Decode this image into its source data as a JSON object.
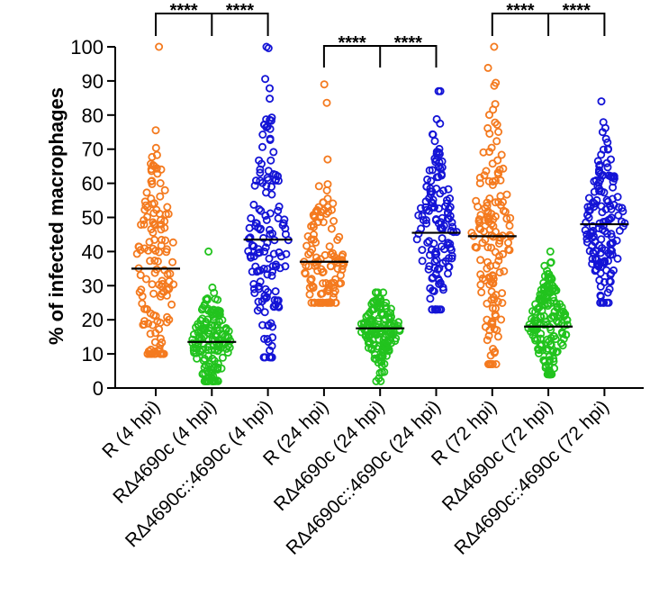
{
  "chart_data": {
    "type": "scatter",
    "title": "",
    "ylabel": "% of infected macrophages",
    "xlabel": "",
    "ylim": [
      0,
      100
    ],
    "yticks": [
      0,
      10,
      20,
      30,
      40,
      50,
      60,
      70,
      80,
      90,
      100
    ],
    "grid": false,
    "categories": [
      "R (4 hpi)",
      "RΔ4690c (4 hpi)",
      "RΔ4690c::4690c (4 hpi)",
      "R (24 hpi)",
      "RΔ4690c (24 hpi)",
      "RΔ4690c::4690c (24 hpi)",
      "R (72 hpi)",
      "RΔ4690c (72 hpi)",
      "RΔ4690c::4690c (72 hpi)"
    ],
    "series": [
      {
        "name": "R (4 hpi)",
        "color": "#f47a1f",
        "mean": 35,
        "min": 10,
        "max": 100,
        "n": 140
      },
      {
        "name": "RΔ4690c (4 hpi)",
        "color": "#22c31e",
        "mean": 13.5,
        "min": 2,
        "max": 40,
        "n": 150
      },
      {
        "name": "RΔ4690c::4690c (4 hpi)",
        "color": "#1414d6",
        "mean": 43.5,
        "min": 9,
        "max": 100,
        "n": 150
      },
      {
        "name": "R (24 hpi)",
        "color": "#f47a1f",
        "mean": 37,
        "min": 25,
        "max": 89,
        "n": 120
      },
      {
        "name": "RΔ4690c (24 hpi)",
        "color": "#22c31e",
        "mean": 17.5,
        "min": 2,
        "max": 28,
        "n": 150
      },
      {
        "name": "RΔ4690c::4690c (24 hpi)",
        "color": "#1414d6",
        "mean": 45.5,
        "min": 23,
        "max": 87,
        "n": 140
      },
      {
        "name": "R (72 hpi)",
        "color": "#f47a1f",
        "mean": 44.5,
        "min": 7,
        "max": 100,
        "n": 150
      },
      {
        "name": "RΔ4690c (72 hpi)",
        "color": "#22c31e",
        "mean": 18,
        "min": 4,
        "max": 40,
        "n": 160
      },
      {
        "name": "RΔ4690c::4690c (72 hpi)",
        "color": "#1414d6",
        "mean": 48,
        "min": 25,
        "max": 84,
        "n": 150
      }
    ],
    "significance": [
      {
        "groups": [
          0,
          1,
          2
        ],
        "left_label": "****",
        "right_label": "****"
      },
      {
        "groups": [
          3,
          4,
          5
        ],
        "left_label": "****",
        "right_label": "****"
      },
      {
        "groups": [
          6,
          7,
          8
        ],
        "left_label": "****",
        "right_label": "****"
      }
    ]
  }
}
